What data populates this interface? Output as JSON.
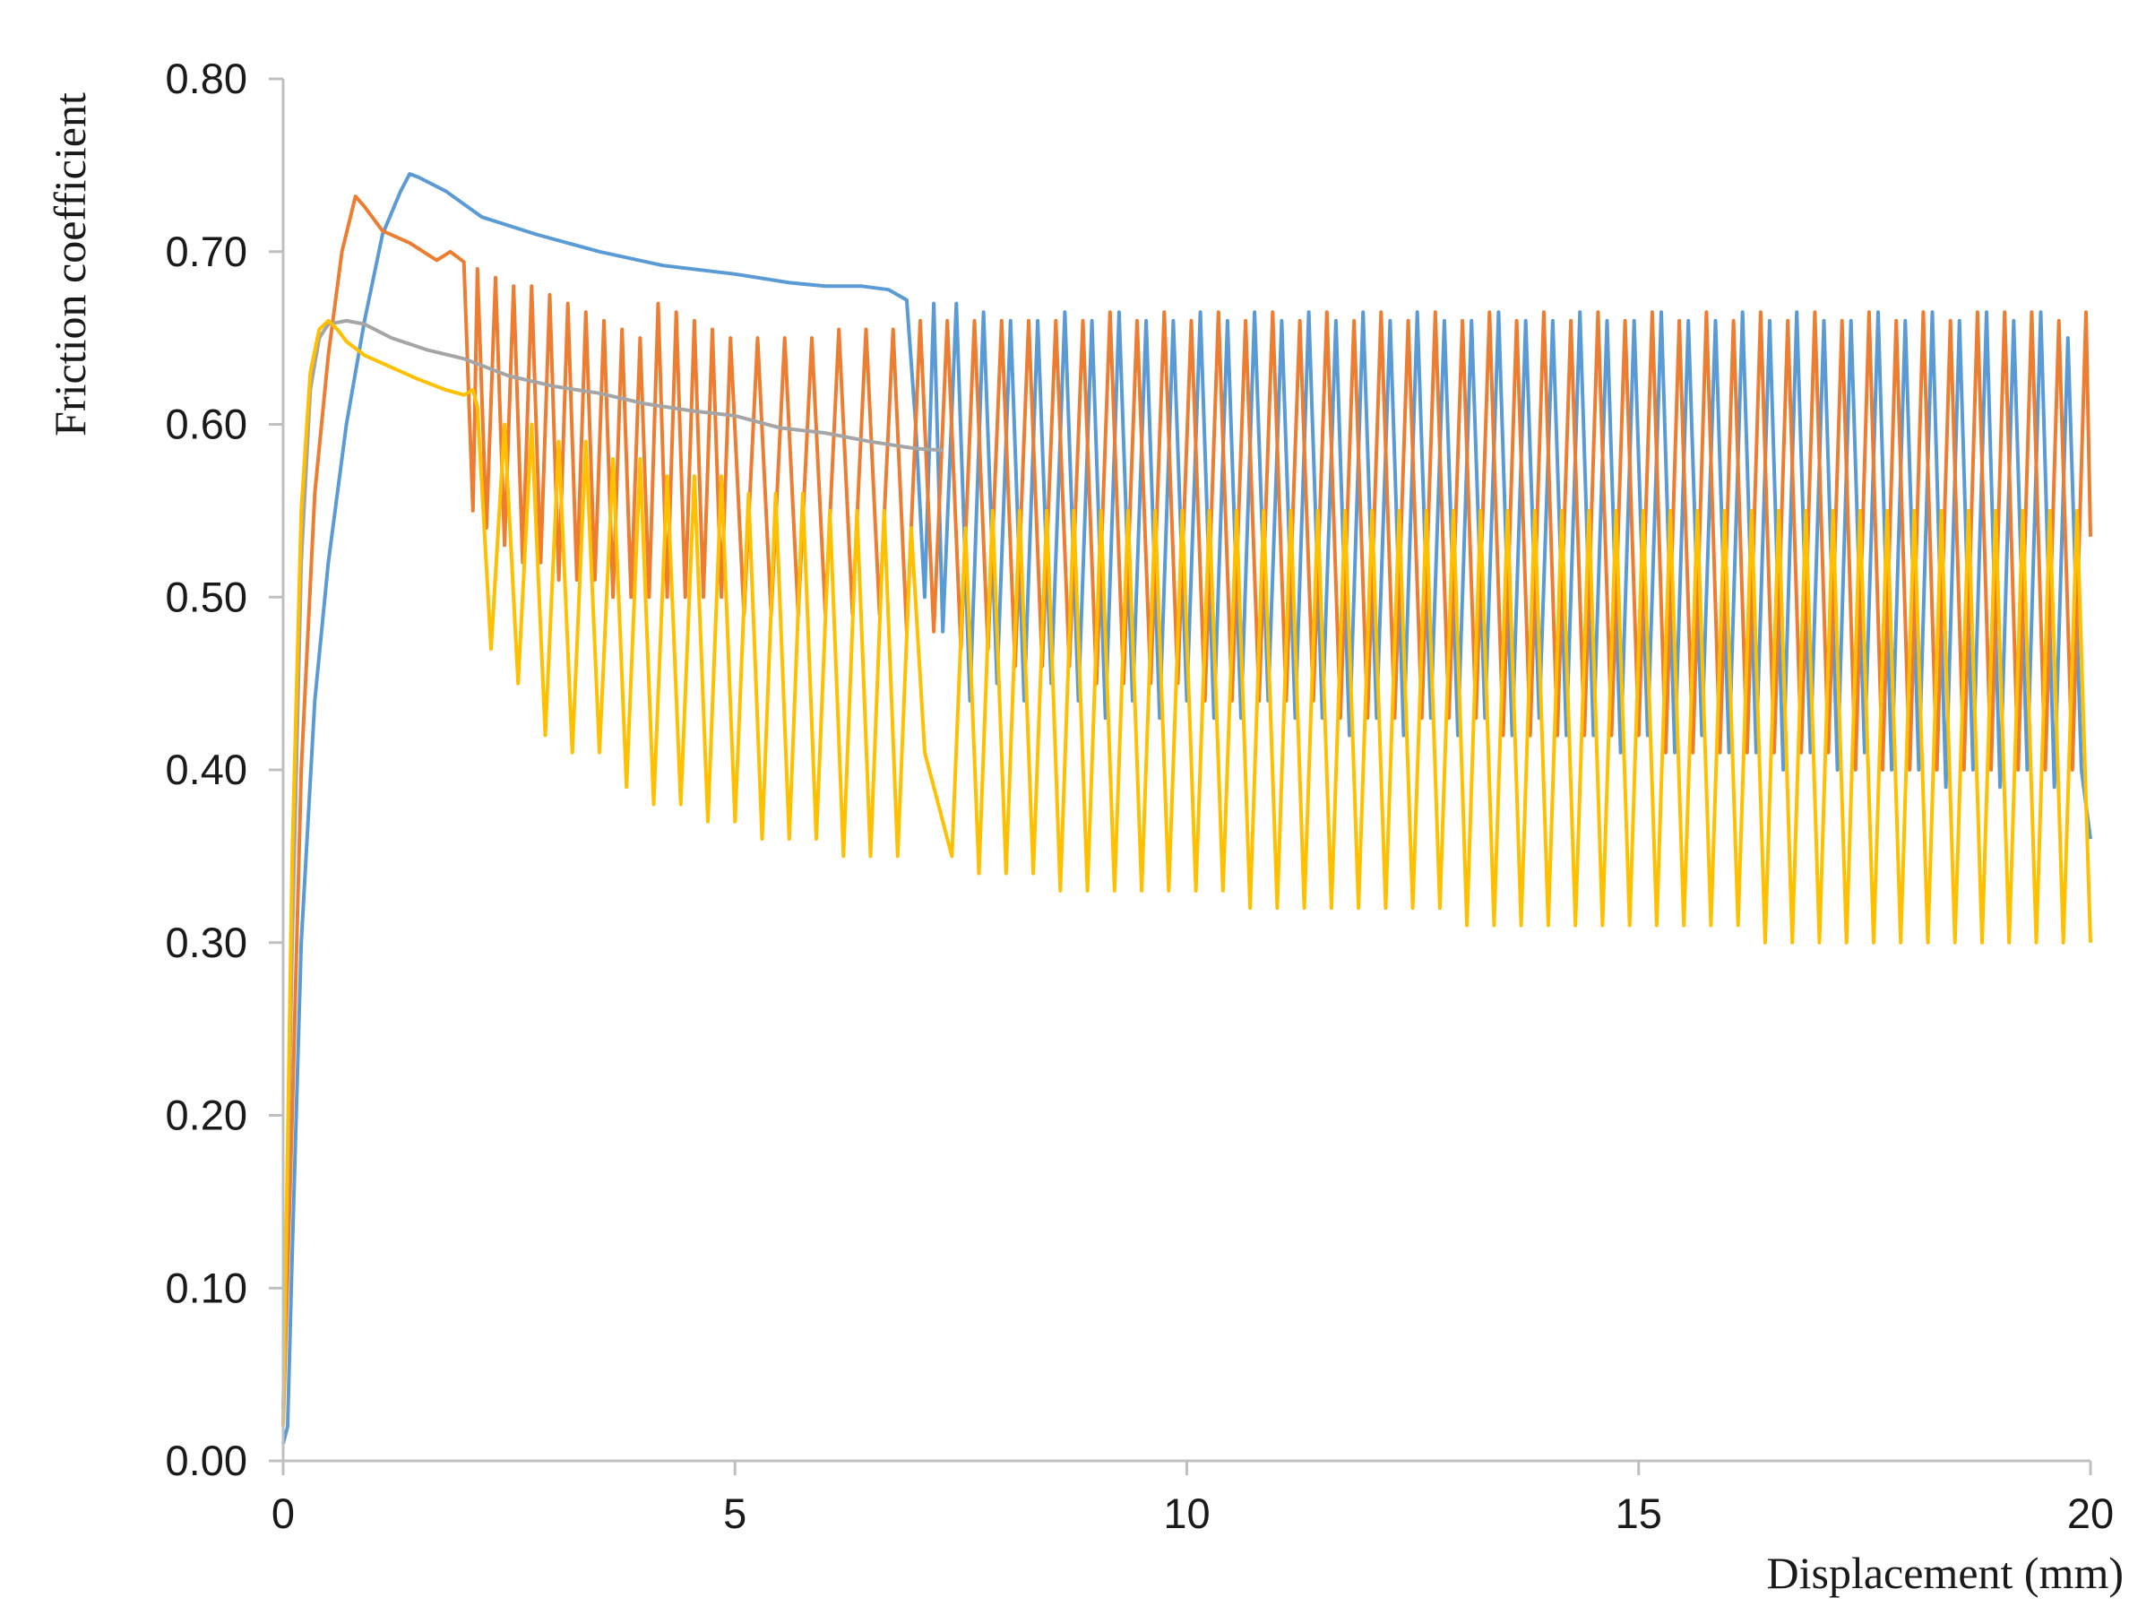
{
  "chart_data": {
    "type": "line",
    "title": "",
    "xlabel": "Displacement (mm)",
    "ylabel": "Friction coefficient",
    "xlim": [
      0,
      20
    ],
    "ylim": [
      0,
      0.8
    ],
    "xticks": [
      0,
      5,
      10,
      15,
      20
    ],
    "xtick_labels": [
      "0",
      "5",
      "10",
      "15",
      "20"
    ],
    "yticks": [
      0,
      0.1,
      0.2,
      0.3,
      0.4,
      0.5,
      0.6,
      0.7,
      0.8
    ],
    "ytick_labels": [
      "0.00",
      "0.10",
      "0.20",
      "0.30",
      "0.40",
      "0.50",
      "0.60",
      "0.70",
      "0.80"
    ],
    "grid": false,
    "legend": "none",
    "series": [
      {
        "color": "#5B9BD5",
        "x": [
          0,
          0.05,
          0.1,
          0.2,
          0.35,
          0.5,
          0.7,
          0.9,
          1.1,
          1.3,
          1.4,
          1.5,
          1.8,
          2.2,
          2.8,
          3.5,
          4.2,
          5.0,
          5.6,
          6.0,
          6.4,
          6.7,
          6.9,
          7.0,
          7.1,
          7.2,
          7.3,
          7.45,
          7.6,
          7.75,
          7.9,
          8.05,
          8.2,
          8.35,
          8.5,
          8.65,
          8.8,
          8.95,
          9.1,
          9.25,
          9.4,
          9.55,
          9.7,
          9.85,
          10.0,
          10.15,
          10.3,
          10.45,
          10.6,
          10.75,
          10.9,
          11.05,
          11.2,
          11.35,
          11.5,
          11.65,
          11.8,
          11.95,
          12.1,
          12.25,
          12.4,
          12.55,
          12.7,
          12.85,
          13.0,
          13.15,
          13.3,
          13.45,
          13.6,
          13.75,
          13.9,
          14.05,
          14.2,
          14.35,
          14.5,
          14.65,
          14.8,
          14.95,
          15.1,
          15.25,
          15.4,
          15.55,
          15.7,
          15.85,
          16.0,
          16.15,
          16.3,
          16.45,
          16.6,
          16.75,
          16.9,
          17.05,
          17.2,
          17.35,
          17.5,
          17.65,
          17.8,
          17.95,
          18.1,
          18.25,
          18.4,
          18.55,
          18.7,
          18.85,
          19.0,
          19.15,
          19.3,
          19.45,
          19.6,
          19.75,
          19.9,
          20.0
        ],
        "values": [
          0.01,
          0.02,
          0.12,
          0.3,
          0.44,
          0.52,
          0.6,
          0.66,
          0.71,
          0.735,
          0.745,
          0.743,
          0.735,
          0.72,
          0.71,
          0.7,
          0.692,
          0.687,
          0.682,
          0.68,
          0.68,
          0.678,
          0.672,
          0.6,
          0.5,
          0.67,
          0.48,
          0.67,
          0.44,
          0.665,
          0.45,
          0.66,
          0.44,
          0.66,
          0.45,
          0.665,
          0.44,
          0.66,
          0.43,
          0.665,
          0.44,
          0.66,
          0.43,
          0.66,
          0.44,
          0.665,
          0.43,
          0.66,
          0.43,
          0.665,
          0.44,
          0.66,
          0.43,
          0.665,
          0.43,
          0.66,
          0.42,
          0.665,
          0.43,
          0.66,
          0.42,
          0.665,
          0.43,
          0.66,
          0.42,
          0.66,
          0.43,
          0.665,
          0.42,
          0.66,
          0.43,
          0.66,
          0.42,
          0.665,
          0.42,
          0.66,
          0.41,
          0.66,
          0.42,
          0.665,
          0.41,
          0.66,
          0.42,
          0.66,
          0.41,
          0.665,
          0.41,
          0.66,
          0.4,
          0.665,
          0.41,
          0.66,
          0.4,
          0.66,
          0.41,
          0.665,
          0.4,
          0.66,
          0.4,
          0.665,
          0.39,
          0.66,
          0.4,
          0.665,
          0.39,
          0.66,
          0.4,
          0.665,
          0.39,
          0.65,
          0.4,
          0.36
        ]
      },
      {
        "color": "#ED7D31",
        "x": [
          0,
          0.1,
          0.2,
          0.35,
          0.5,
          0.65,
          0.8,
          0.9,
          1.1,
          1.4,
          1.7,
          1.85,
          2.0,
          2.1,
          2.15,
          2.25,
          2.35,
          2.45,
          2.55,
          2.65,
          2.75,
          2.85,
          2.95,
          3.05,
          3.15,
          3.25,
          3.35,
          3.45,
          3.55,
          3.65,
          3.75,
          3.85,
          3.95,
          4.05,
          4.15,
          4.25,
          4.35,
          4.45,
          4.55,
          4.65,
          4.75,
          4.85,
          4.95,
          5.1,
          5.25,
          5.4,
          5.55,
          5.7,
          5.85,
          6.0,
          6.15,
          6.3,
          6.45,
          6.6,
          6.75,
          6.9,
          7.05,
          7.2,
          7.35,
          7.5,
          7.65,
          7.8,
          7.95,
          8.1,
          8.25,
          8.4,
          8.55,
          8.7,
          8.85,
          9.0,
          9.15,
          9.3,
          9.45,
          9.6,
          9.75,
          9.9,
          10.05,
          10.2,
          10.35,
          10.5,
          10.65,
          10.8,
          10.95,
          11.1,
          11.25,
          11.4,
          11.55,
          11.7,
          11.85,
          12.0,
          12.15,
          12.3,
          12.45,
          12.6,
          12.75,
          12.9,
          13.05,
          13.2,
          13.35,
          13.5,
          13.65,
          13.8,
          13.95,
          14.1,
          14.25,
          14.4,
          14.55,
          14.7,
          14.85,
          15.0,
          15.15,
          15.3,
          15.45,
          15.6,
          15.75,
          15.9,
          16.05,
          16.2,
          16.35,
          16.5,
          16.65,
          16.8,
          16.95,
          17.1,
          17.25,
          17.4,
          17.55,
          17.7,
          17.85,
          18.0,
          18.15,
          18.3,
          18.45,
          18.6,
          18.75,
          18.9,
          19.05,
          19.2,
          19.35,
          19.5,
          19.65,
          19.8,
          19.95,
          20.0
        ],
        "values": [
          0.02,
          0.2,
          0.4,
          0.56,
          0.64,
          0.7,
          0.732,
          0.726,
          0.712,
          0.705,
          0.695,
          0.7,
          0.694,
          0.55,
          0.69,
          0.54,
          0.685,
          0.53,
          0.68,
          0.52,
          0.68,
          0.52,
          0.675,
          0.51,
          0.67,
          0.51,
          0.665,
          0.51,
          0.66,
          0.5,
          0.655,
          0.5,
          0.65,
          0.5,
          0.67,
          0.5,
          0.665,
          0.5,
          0.66,
          0.5,
          0.655,
          0.5,
          0.65,
          0.49,
          0.65,
          0.49,
          0.65,
          0.49,
          0.65,
          0.49,
          0.655,
          0.49,
          0.655,
          0.49,
          0.655,
          0.48,
          0.66,
          0.48,
          0.66,
          0.47,
          0.66,
          0.47,
          0.66,
          0.46,
          0.66,
          0.46,
          0.66,
          0.46,
          0.66,
          0.45,
          0.665,
          0.45,
          0.66,
          0.45,
          0.665,
          0.45,
          0.66,
          0.44,
          0.665,
          0.44,
          0.66,
          0.44,
          0.665,
          0.44,
          0.66,
          0.44,
          0.665,
          0.43,
          0.66,
          0.43,
          0.665,
          0.43,
          0.66,
          0.43,
          0.665,
          0.43,
          0.66,
          0.43,
          0.665,
          0.42,
          0.66,
          0.42,
          0.665,
          0.42,
          0.66,
          0.42,
          0.665,
          0.42,
          0.66,
          0.42,
          0.665,
          0.41,
          0.66,
          0.41,
          0.665,
          0.41,
          0.66,
          0.41,
          0.665,
          0.41,
          0.66,
          0.41,
          0.665,
          0.41,
          0.66,
          0.4,
          0.665,
          0.4,
          0.66,
          0.4,
          0.665,
          0.4,
          0.66,
          0.4,
          0.665,
          0.4,
          0.665,
          0.4,
          0.665,
          0.4,
          0.66,
          0.4,
          0.665,
          0.535
        ]
      },
      {
        "color": "#A5A5A5",
        "x": [
          0,
          0.1,
          0.2,
          0.3,
          0.4,
          0.5,
          0.7,
          0.9,
          1.2,
          1.6,
          2.0,
          2.5,
          3.0,
          3.5,
          4.0,
          4.5,
          5.0,
          5.5,
          6.0,
          6.5,
          7.0,
          7.3
        ],
        "values": [
          0.03,
          0.3,
          0.52,
          0.62,
          0.65,
          0.658,
          0.66,
          0.658,
          0.65,
          0.643,
          0.638,
          0.628,
          0.622,
          0.618,
          0.612,
          0.608,
          0.605,
          0.598,
          0.595,
          0.59,
          0.586,
          0.585
        ]
      },
      {
        "color": "#FFC000",
        "x": [
          0,
          0.1,
          0.2,
          0.3,
          0.4,
          0.5,
          0.6,
          0.7,
          0.9,
          1.2,
          1.5,
          1.8,
          2.0,
          2.1,
          2.15,
          2.3,
          2.45,
          2.6,
          2.75,
          2.9,
          3.05,
          3.2,
          3.35,
          3.5,
          3.65,
          3.8,
          3.95,
          4.1,
          4.25,
          4.4,
          4.55,
          4.7,
          4.85,
          5.0,
          5.15,
          5.3,
          5.45,
          5.6,
          5.75,
          5.9,
          6.05,
          6.2,
          6.35,
          6.5,
          6.65,
          6.8,
          6.95,
          7.1,
          7.25,
          7.4,
          7.55,
          7.7,
          7.85,
          8.0,
          8.15,
          8.3,
          8.45,
          8.6,
          8.75,
          8.9,
          9.05,
          9.2,
          9.35,
          9.5,
          9.65,
          9.8,
          9.95,
          10.1,
          10.25,
          10.4,
          10.55,
          10.7,
          10.85,
          11.0,
          11.15,
          11.3,
          11.45,
          11.6,
          11.75,
          11.9,
          12.05,
          12.2,
          12.35,
          12.5,
          12.65,
          12.8,
          12.95,
          13.1,
          13.25,
          13.4,
          13.55,
          13.7,
          13.85,
          14.0,
          14.15,
          14.3,
          14.45,
          14.6,
          14.75,
          14.9,
          15.05,
          15.2,
          15.35,
          15.5,
          15.65,
          15.8,
          15.95,
          16.1,
          16.25,
          16.4,
          16.55,
          16.7,
          16.85,
          17.0,
          17.15,
          17.3,
          17.45,
          17.6,
          17.75,
          17.9,
          18.05,
          18.2,
          18.35,
          18.5,
          18.65,
          18.8,
          18.95,
          19.1,
          19.25,
          19.4,
          19.55,
          19.7,
          19.85,
          20.0
        ],
        "values": [
          0.02,
          0.35,
          0.55,
          0.63,
          0.655,
          0.66,
          0.655,
          0.648,
          0.64,
          0.633,
          0.626,
          0.62,
          0.617,
          0.62,
          0.61,
          0.47,
          0.6,
          0.45,
          0.6,
          0.42,
          0.59,
          0.41,
          0.59,
          0.41,
          0.58,
          0.39,
          0.58,
          0.38,
          0.57,
          0.38,
          0.57,
          0.37,
          0.57,
          0.37,
          0.56,
          0.36,
          0.56,
          0.36,
          0.56,
          0.36,
          0.55,
          0.35,
          0.55,
          0.35,
          0.55,
          0.35,
          0.54,
          0.41,
          0.38,
          0.35,
          0.54,
          0.34,
          0.55,
          0.34,
          0.55,
          0.34,
          0.55,
          0.33,
          0.55,
          0.33,
          0.55,
          0.33,
          0.55,
          0.33,
          0.55,
          0.33,
          0.55,
          0.33,
          0.55,
          0.33,
          0.55,
          0.32,
          0.55,
          0.32,
          0.55,
          0.32,
          0.55,
          0.32,
          0.55,
          0.32,
          0.55,
          0.32,
          0.55,
          0.32,
          0.55,
          0.32,
          0.55,
          0.31,
          0.55,
          0.31,
          0.55,
          0.31,
          0.55,
          0.31,
          0.55,
          0.31,
          0.55,
          0.31,
          0.55,
          0.31,
          0.55,
          0.31,
          0.55,
          0.31,
          0.55,
          0.31,
          0.55,
          0.31,
          0.55,
          0.3,
          0.55,
          0.3,
          0.55,
          0.3,
          0.55,
          0.3,
          0.55,
          0.3,
          0.55,
          0.3,
          0.55,
          0.3,
          0.55,
          0.3,
          0.55,
          0.3,
          0.55,
          0.3,
          0.55,
          0.3,
          0.55,
          0.3,
          0.55,
          0.3
        ]
      }
    ]
  }
}
